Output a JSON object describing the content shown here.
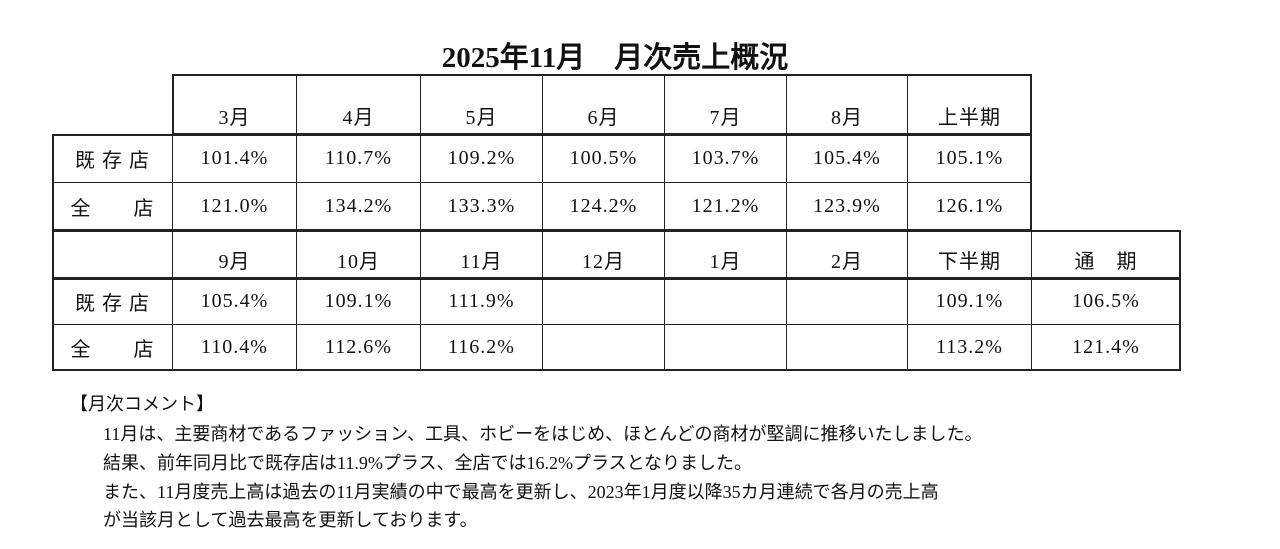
{
  "title": "2025年11月　月次売上概況",
  "blocks": [
    {
      "header": [
        "3月",
        "4月",
        "5月",
        "6月",
        "7月",
        "8月",
        "上半期"
      ],
      "rows": [
        {
          "label": "既 存 店",
          "values": [
            "101.4%",
            "110.7%",
            "109.2%",
            "100.5%",
            "103.7%",
            "105.4%",
            "105.1%"
          ]
        },
        {
          "label": "全　　店",
          "values": [
            "121.0%",
            "134.2%",
            "133.3%",
            "124.2%",
            "121.2%",
            "123.9%",
            "126.1%"
          ]
        }
      ]
    },
    {
      "header": [
        "9月",
        "10月",
        "11月",
        "12月",
        "1月",
        "2月",
        "下半期",
        "通　期"
      ],
      "rows": [
        {
          "label": "既 存 店",
          "values": [
            "105.4%",
            "109.1%",
            "111.9%",
            null,
            null,
            null,
            "109.1%",
            "106.5%"
          ]
        },
        {
          "label": "全　　店",
          "values": [
            "110.4%",
            "112.6%",
            "116.2%",
            null,
            null,
            null,
            "113.2%",
            "121.4%"
          ]
        }
      ]
    }
  ],
  "comment": {
    "heading": "【月次コメント】",
    "lines": [
      "11月は、主要商材であるファッション、工具、ホビーをはじめ、ほとんどの商材が堅調に推移いたしました。",
      "結果、前年同月比で既存店は11.9%プラス、全店では16.2%プラスとなりました。",
      "また、11月度売上高は過去の11月実績の中で最高を更新し、2023年1月度以降35カ月連続で各月の売上高",
      "が当該月として過去最高を更新しております。"
    ]
  }
}
